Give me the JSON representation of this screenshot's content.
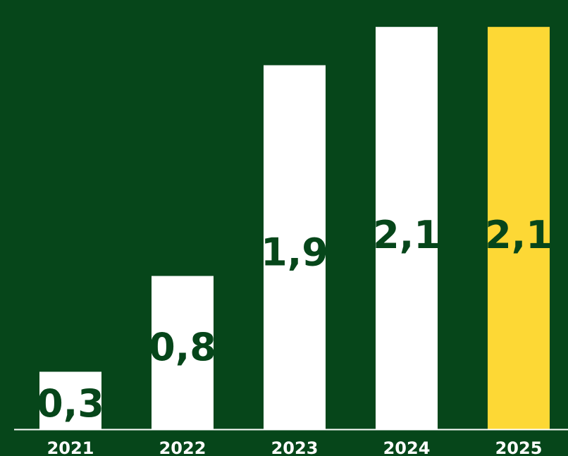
{
  "chart_data": {
    "type": "bar",
    "categories": [
      "2021",
      "2022",
      "2023",
      "2024",
      "2025"
    ],
    "values": [
      0.3,
      0.8,
      1.9,
      2.1,
      2.1
    ],
    "value_labels": [
      "0,3",
      "0,8",
      "1,9",
      "2,1",
      "2,1"
    ],
    "ylim": [
      0,
      2.2
    ],
    "grid": false,
    "legend": "none",
    "colors": {
      "background": "#06461a",
      "bar": "#ffffff",
      "highlight_bar": "#fdd835",
      "label_text": "#06461a",
      "tick_text": "#ffffff",
      "axis": "#ffffff"
    },
    "highlight_index": 4
  }
}
